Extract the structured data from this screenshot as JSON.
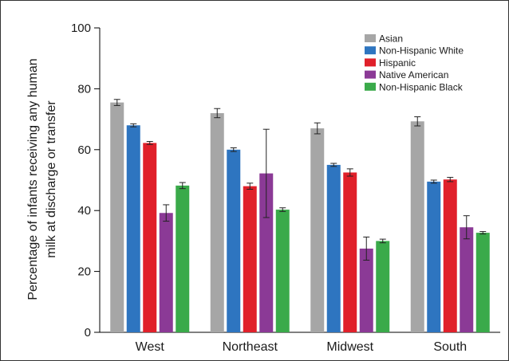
{
  "chart_data": {
    "type": "bar",
    "title": "",
    "xlabel": "",
    "ylabel_lines": [
      "Percentage of infants receiving any human",
      "milk at discharge or transfer"
    ],
    "ylim": [
      0,
      100
    ],
    "yticks": [
      0,
      20,
      40,
      60,
      80,
      100
    ],
    "grid": false,
    "legend_position": "top-right",
    "categories": [
      "West",
      "Northeast",
      "Midwest",
      "South"
    ],
    "series": [
      {
        "name": "Asian",
        "color": "#a6a6a6",
        "values": [
          75.5,
          72.0,
          67.0,
          69.3
        ],
        "errors": [
          1.0,
          1.5,
          1.8,
          1.5
        ]
      },
      {
        "name": "Non-Hispanic White",
        "color": "#2e75c0",
        "values": [
          68.0,
          60.0,
          55.0,
          49.5
        ],
        "errors": [
          0.5,
          0.6,
          0.5,
          0.5
        ]
      },
      {
        "name": "Hispanic",
        "color": "#e0202a",
        "values": [
          62.2,
          48.0,
          52.5,
          50.2
        ],
        "errors": [
          0.5,
          1.0,
          1.2,
          0.7
        ]
      },
      {
        "name": "Native American",
        "color": "#8b3a96",
        "values": [
          39.2,
          52.2,
          27.5,
          34.5
        ],
        "errors": [
          2.7,
          14.5,
          3.8,
          3.8
        ]
      },
      {
        "name": "Non-Hispanic Black",
        "color": "#3aaa4a",
        "values": [
          48.2,
          40.3,
          30.0,
          32.7
        ],
        "errors": [
          1.0,
          0.6,
          0.6,
          0.4
        ]
      }
    ]
  }
}
